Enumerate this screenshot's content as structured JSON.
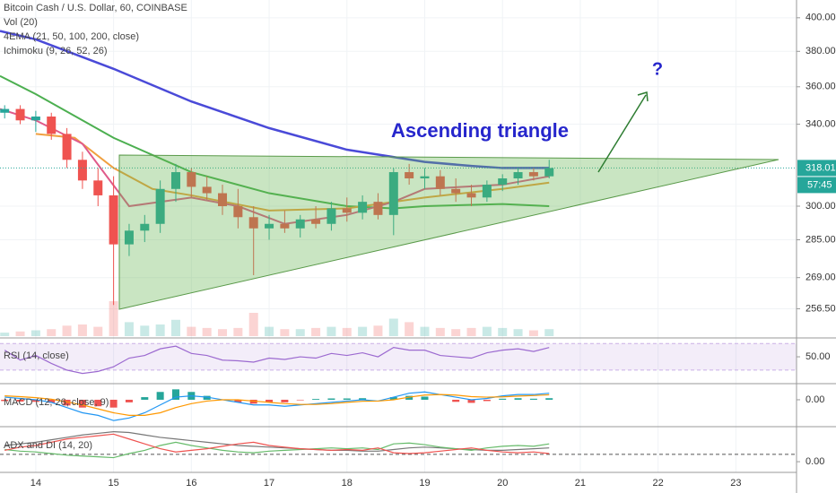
{
  "chart_data": {
    "type": "candlestick",
    "title": "Bitcoin Cash / U.S. Dollar, 60, COINBASE",
    "indicator_labels": [
      "Vol (20)",
      "4EMA (21, 50, 100, 200, close)",
      "Ichimoku (9, 26, 52, 26)"
    ],
    "annotations": [
      "Ascending triangle",
      "?"
    ],
    "log": true,
    "xlim": [
      13.54,
      23.78
    ],
    "ylim": [
      246,
      411
    ],
    "xticks": [
      14,
      15,
      16,
      17,
      18,
      19,
      20,
      21,
      22,
      23
    ],
    "yticks": [
      {
        "value": 400,
        "label": "400.00"
      },
      {
        "value": 380,
        "label": "380.00"
      },
      {
        "value": 360,
        "label": "360.00"
      },
      {
        "value": 340,
        "label": "340.00"
      },
      {
        "value": 300,
        "label": "300.00"
      },
      {
        "value": 285,
        "label": "285.00"
      },
      {
        "value": 269,
        "label": "269.00"
      },
      {
        "value": 256.5,
        "label": "256.50"
      }
    ],
    "up_color": "#26a69a",
    "down_color": "#ef5350",
    "last_price": 318.01,
    "countdown": "57:45",
    "x": [
      13.6,
      13.8,
      14.0,
      14.2,
      14.4,
      14.6,
      14.8,
      15.0,
      15.2,
      15.4,
      15.6,
      15.8,
      16.0,
      16.2,
      16.4,
      16.6,
      16.8,
      17.0,
      17.2,
      17.4,
      17.6,
      17.8,
      18.0,
      18.2,
      18.4,
      18.6,
      18.8,
      19.0,
      19.2,
      19.4,
      19.6,
      19.8,
      20.0,
      20.2,
      20.4,
      20.6
    ],
    "open": [
      346,
      348,
      342,
      344,
      335,
      322,
      312,
      305,
      283,
      289,
      292,
      308,
      316,
      309,
      306,
      300,
      295,
      290,
      292,
      290,
      294,
      292,
      299,
      297,
      302,
      296,
      316,
      313,
      314,
      308,
      306,
      304,
      310,
      313,
      316,
      314
    ],
    "high": [
      350,
      350,
      347,
      346,
      338,
      326,
      318,
      314,
      292,
      296,
      312,
      320,
      318,
      314,
      310,
      308,
      300,
      296,
      298,
      296,
      300,
      302,
      304,
      305,
      306,
      318,
      320,
      318,
      317,
      313,
      310,
      312,
      315,
      318,
      318,
      322
    ],
    "low": [
      343,
      340,
      336,
      332,
      318,
      308,
      300,
      258,
      278,
      284,
      288,
      302,
      304,
      303,
      296,
      290,
      270,
      285,
      288,
      286,
      290,
      289,
      293,
      294,
      294,
      287,
      310,
      308,
      305,
      302,
      300,
      302,
      307,
      310,
      312,
      313
    ],
    "close": [
      348,
      342,
      344,
      335,
      322,
      312,
      305,
      283,
      289,
      292,
      308,
      316,
      309,
      306,
      300,
      295,
      290,
      292,
      290,
      294,
      292,
      299,
      297,
      302,
      296,
      316,
      313,
      314,
      308,
      306,
      304,
      310,
      313,
      316,
      314,
      318
    ],
    "volume": [
      3,
      4,
      5,
      6,
      9,
      10,
      8,
      30,
      12,
      9,
      10,
      14,
      8,
      7,
      6,
      7,
      20,
      8,
      6,
      6,
      7,
      8,
      7,
      8,
      9,
      15,
      12,
      8,
      7,
      6,
      7,
      8,
      7,
      6,
      5,
      6
    ],
    "ema_lines": [
      {
        "color": "#4a4ad8",
        "x": [
          13.54,
          14,
          15,
          16,
          17,
          18,
          19,
          19.6,
          20,
          20.6
        ],
        "values": [
          392,
          387,
          370,
          352,
          338,
          327,
          321,
          319,
          318,
          318
        ]
      },
      {
        "color": "#4caf50",
        "x": [
          13.54,
          14,
          15,
          16,
          17,
          18,
          18.6,
          19,
          20,
          20.6
        ],
        "values": [
          366,
          356,
          333,
          316,
          306,
          300,
          299,
          300,
          301,
          300
        ]
      },
      {
        "color": "#f0a040",
        "x": [
          14,
          14.5,
          15,
          15.5,
          16,
          17,
          18,
          19,
          20,
          20.6
        ],
        "values": [
          335,
          333,
          318,
          308,
          305,
          298,
          299,
          304,
          308,
          311
        ]
      },
      {
        "color": "#e05a8a",
        "x": [
          13.54,
          14,
          14.6,
          15.2,
          16,
          16.6,
          17.2,
          18,
          18.6,
          19,
          20,
          20.6
        ],
        "values": [
          348,
          342,
          330,
          300,
          304,
          300,
          292,
          296,
          302,
          308,
          310,
          314
        ]
      }
    ],
    "panes": [
      {
        "title": "RSI (14, close)",
        "ylim": [
          11,
          77
        ],
        "yticks": [
          {
            "value": 50,
            "label": "50.00"
          }
        ],
        "band": [
          30,
          70
        ],
        "series": [
          {
            "color": "#9c6ad0",
            "values": [
              60,
              45,
              52,
              40,
              30,
              25,
              28,
              35,
              48,
              52,
              62,
              66,
              55,
              52,
              45,
              44,
              42,
              48,
              46,
              50,
              48,
              55,
              52,
              56,
              50,
              64,
              60,
              60,
              52,
              50,
              48,
              56,
              60,
              62,
              58,
              64
            ]
          }
        ]
      },
      {
        "title": "MACD (12, 26, close, 9)",
        "ylim": [
          -10,
          5.5
        ],
        "yticks": [
          {
            "value": 0,
            "label": "0.00"
          }
        ],
        "histogram": [
          -0.5,
          -0.7,
          -0.8,
          -1.2,
          -2.2,
          -3,
          -2.5,
          -3,
          -1,
          1,
          3,
          4,
          3,
          1.5,
          0,
          -1,
          -1.5,
          -1,
          -1,
          -0.2,
          0.3,
          0.5,
          0.5,
          0.6,
          0,
          1,
          1.5,
          1.2,
          0,
          -0.8,
          -1.2,
          -0.5,
          0.4,
          0.6,
          0.4,
          0.6
        ],
        "series": [
          {
            "color": "#2196f3",
            "values": [
              1,
              0.5,
              0,
              -1,
              -3,
              -5,
              -6,
              -8,
              -7,
              -5,
              -2,
              1,
              1.5,
              1,
              0,
              -1,
              -2,
              -2,
              -2.5,
              -2,
              -1.5,
              -1,
              -0.5,
              0,
              -0.5,
              1,
              2.5,
              3,
              2,
              1,
              0,
              0.5,
              1.5,
              2,
              2,
              2.5
            ]
          },
          {
            "color": "#ff9800",
            "values": [
              1.5,
              1.2,
              0.8,
              0.2,
              -0.8,
              -2,
              -3.5,
              -5,
              -6,
              -6,
              -5,
              -3,
              -1.5,
              -0.5,
              0,
              0,
              -0.5,
              -1,
              -1.5,
              -1.8,
              -1.8,
              -1.5,
              -1,
              -0.6,
              -0.5,
              0,
              1,
              1.8,
              2,
              1.8,
              1.2,
              1,
              1.1,
              1.4,
              1.6,
              1.9
            ]
          }
        ]
      },
      {
        "title": "ADX and DI (14, 20)",
        "ylim": [
          -11,
          41
        ],
        "yticks": [
          {
            "value": 0,
            "label": "0.00"
          }
        ],
        "level": 9,
        "series": [
          {
            "color": "#777777",
            "values": [
              20,
              22,
              24,
              27,
              30,
              33,
              35,
              37,
              36,
              33,
              30,
              28,
              26,
              24,
              22,
              20,
              19,
              18,
              17,
              16,
              15,
              14,
              14,
              13,
              13,
              15,
              17,
              18,
              17,
              16,
              15,
              14,
              14,
              15,
              16,
              17
            ]
          },
          {
            "color": "#66bb6a",
            "values": [
              15,
              13,
              12,
              10,
              8,
              7,
              6,
              5,
              10,
              14,
              20,
              24,
              20,
              17,
              14,
              12,
              11,
              13,
              14,
              15,
              16,
              17,
              16,
              17,
              15,
              22,
              23,
              21,
              18,
              16,
              14,
              17,
              19,
              20,
              19,
              22
            ]
          },
          {
            "color": "#ef5350",
            "values": [
              14,
              18,
              20,
              24,
              28,
              30,
              32,
              34,
              28,
              22,
              16,
              12,
              14,
              16,
              19,
              22,
              24,
              20,
              18,
              16,
              15,
              14,
              15,
              14,
              17,
              11,
              10,
              11,
              13,
              15,
              17,
              14,
              12,
              11,
              12,
              10
            ]
          }
        ]
      }
    ]
  }
}
